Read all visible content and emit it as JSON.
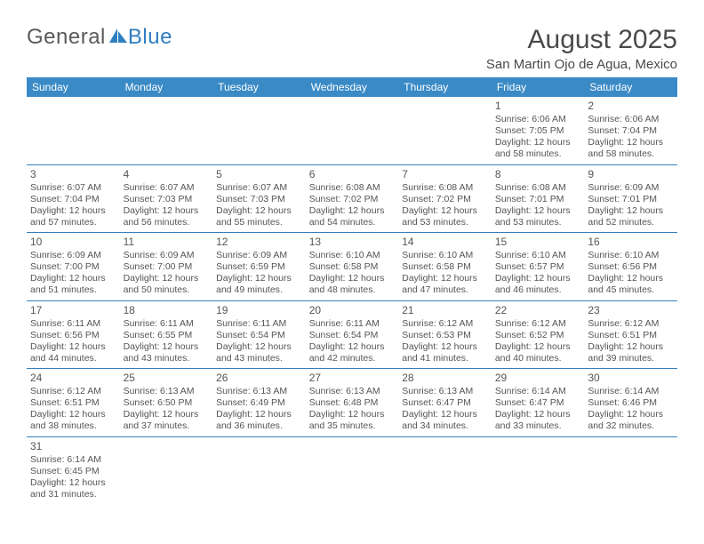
{
  "brand": {
    "text1": "General",
    "text2": "Blue",
    "sail_color": "#2f7ec0"
  },
  "title": "August 2025",
  "location": "San Martin Ojo de Agua, Mexico",
  "colors": {
    "header_bg": "#3a8ac6",
    "header_fg": "#ffffff",
    "rule": "#2f7ec0",
    "text": "#555555"
  },
  "dow": [
    "Sunday",
    "Monday",
    "Tuesday",
    "Wednesday",
    "Thursday",
    "Friday",
    "Saturday"
  ],
  "cells": [
    null,
    null,
    null,
    null,
    null,
    {
      "n": "1",
      "sr": "6:06 AM",
      "ss": "7:05 PM",
      "dl": "12 hours and 58 minutes."
    },
    {
      "n": "2",
      "sr": "6:06 AM",
      "ss": "7:04 PM",
      "dl": "12 hours and 58 minutes."
    },
    {
      "n": "3",
      "sr": "6:07 AM",
      "ss": "7:04 PM",
      "dl": "12 hours and 57 minutes."
    },
    {
      "n": "4",
      "sr": "6:07 AM",
      "ss": "7:03 PM",
      "dl": "12 hours and 56 minutes."
    },
    {
      "n": "5",
      "sr": "6:07 AM",
      "ss": "7:03 PM",
      "dl": "12 hours and 55 minutes."
    },
    {
      "n": "6",
      "sr": "6:08 AM",
      "ss": "7:02 PM",
      "dl": "12 hours and 54 minutes."
    },
    {
      "n": "7",
      "sr": "6:08 AM",
      "ss": "7:02 PM",
      "dl": "12 hours and 53 minutes."
    },
    {
      "n": "8",
      "sr": "6:08 AM",
      "ss": "7:01 PM",
      "dl": "12 hours and 53 minutes."
    },
    {
      "n": "9",
      "sr": "6:09 AM",
      "ss": "7:01 PM",
      "dl": "12 hours and 52 minutes."
    },
    {
      "n": "10",
      "sr": "6:09 AM",
      "ss": "7:00 PM",
      "dl": "12 hours and 51 minutes."
    },
    {
      "n": "11",
      "sr": "6:09 AM",
      "ss": "7:00 PM",
      "dl": "12 hours and 50 minutes."
    },
    {
      "n": "12",
      "sr": "6:09 AM",
      "ss": "6:59 PM",
      "dl": "12 hours and 49 minutes."
    },
    {
      "n": "13",
      "sr": "6:10 AM",
      "ss": "6:58 PM",
      "dl": "12 hours and 48 minutes."
    },
    {
      "n": "14",
      "sr": "6:10 AM",
      "ss": "6:58 PM",
      "dl": "12 hours and 47 minutes."
    },
    {
      "n": "15",
      "sr": "6:10 AM",
      "ss": "6:57 PM",
      "dl": "12 hours and 46 minutes."
    },
    {
      "n": "16",
      "sr": "6:10 AM",
      "ss": "6:56 PM",
      "dl": "12 hours and 45 minutes."
    },
    {
      "n": "17",
      "sr": "6:11 AM",
      "ss": "6:56 PM",
      "dl": "12 hours and 44 minutes."
    },
    {
      "n": "18",
      "sr": "6:11 AM",
      "ss": "6:55 PM",
      "dl": "12 hours and 43 minutes."
    },
    {
      "n": "19",
      "sr": "6:11 AM",
      "ss": "6:54 PM",
      "dl": "12 hours and 43 minutes."
    },
    {
      "n": "20",
      "sr": "6:11 AM",
      "ss": "6:54 PM",
      "dl": "12 hours and 42 minutes."
    },
    {
      "n": "21",
      "sr": "6:12 AM",
      "ss": "6:53 PM",
      "dl": "12 hours and 41 minutes."
    },
    {
      "n": "22",
      "sr": "6:12 AM",
      "ss": "6:52 PM",
      "dl": "12 hours and 40 minutes."
    },
    {
      "n": "23",
      "sr": "6:12 AM",
      "ss": "6:51 PM",
      "dl": "12 hours and 39 minutes."
    },
    {
      "n": "24",
      "sr": "6:12 AM",
      "ss": "6:51 PM",
      "dl": "12 hours and 38 minutes."
    },
    {
      "n": "25",
      "sr": "6:13 AM",
      "ss": "6:50 PM",
      "dl": "12 hours and 37 minutes."
    },
    {
      "n": "26",
      "sr": "6:13 AM",
      "ss": "6:49 PM",
      "dl": "12 hours and 36 minutes."
    },
    {
      "n": "27",
      "sr": "6:13 AM",
      "ss": "6:48 PM",
      "dl": "12 hours and 35 minutes."
    },
    {
      "n": "28",
      "sr": "6:13 AM",
      "ss": "6:47 PM",
      "dl": "12 hours and 34 minutes."
    },
    {
      "n": "29",
      "sr": "6:14 AM",
      "ss": "6:47 PM",
      "dl": "12 hours and 33 minutes."
    },
    {
      "n": "30",
      "sr": "6:14 AM",
      "ss": "6:46 PM",
      "dl": "12 hours and 32 minutes."
    },
    {
      "n": "31",
      "sr": "6:14 AM",
      "ss": "6:45 PM",
      "dl": "12 hours and 31 minutes."
    },
    null,
    null,
    null,
    null,
    null,
    null
  ],
  "labels": {
    "sunrise": "Sunrise: ",
    "sunset": "Sunset: ",
    "daylight": "Daylight: "
  }
}
